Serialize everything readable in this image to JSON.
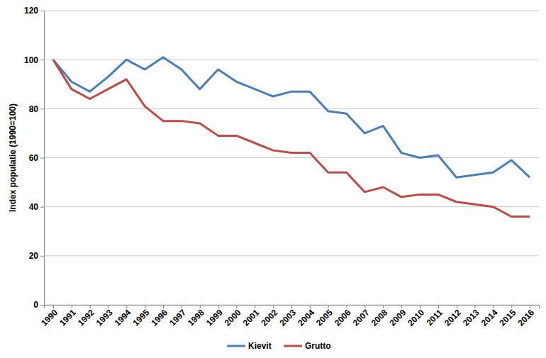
{
  "chart_data": {
    "type": "line",
    "y_label": "Index populatie (1990=100)",
    "categories": [
      "1990",
      "1991",
      "1992",
      "1993",
      "1994",
      "1995",
      "1996",
      "1997",
      "1998",
      "1999",
      "2000",
      "2001",
      "2002",
      "2003",
      "2004",
      "2005",
      "2006",
      "2007",
      "2008",
      "2009",
      "2010",
      "2011",
      "2012",
      "2013",
      "2014",
      "2015",
      "2016"
    ],
    "series": [
      {
        "name": "Kievit",
        "color": "#4a7ebb",
        "values": [
          100,
          91,
          87,
          93,
          100,
          96,
          101,
          96,
          88,
          96,
          91,
          88,
          85,
          87,
          87,
          79,
          78,
          70,
          73,
          62,
          60,
          61,
          52,
          53,
          54,
          59,
          52
        ]
      },
      {
        "name": "Grutto",
        "color": "#be4b48",
        "values": [
          100,
          88,
          84,
          88,
          92,
          81,
          75,
          75,
          74,
          69,
          69,
          66,
          63,
          62,
          62,
          54,
          54,
          46,
          48,
          44,
          45,
          45,
          42,
          41,
          40,
          36,
          36
        ]
      }
    ],
    "ylim": [
      0,
      120
    ],
    "yticks": [
      0,
      20,
      40,
      60,
      80,
      100,
      120
    ],
    "grid": true,
    "legend": "bottom"
  }
}
